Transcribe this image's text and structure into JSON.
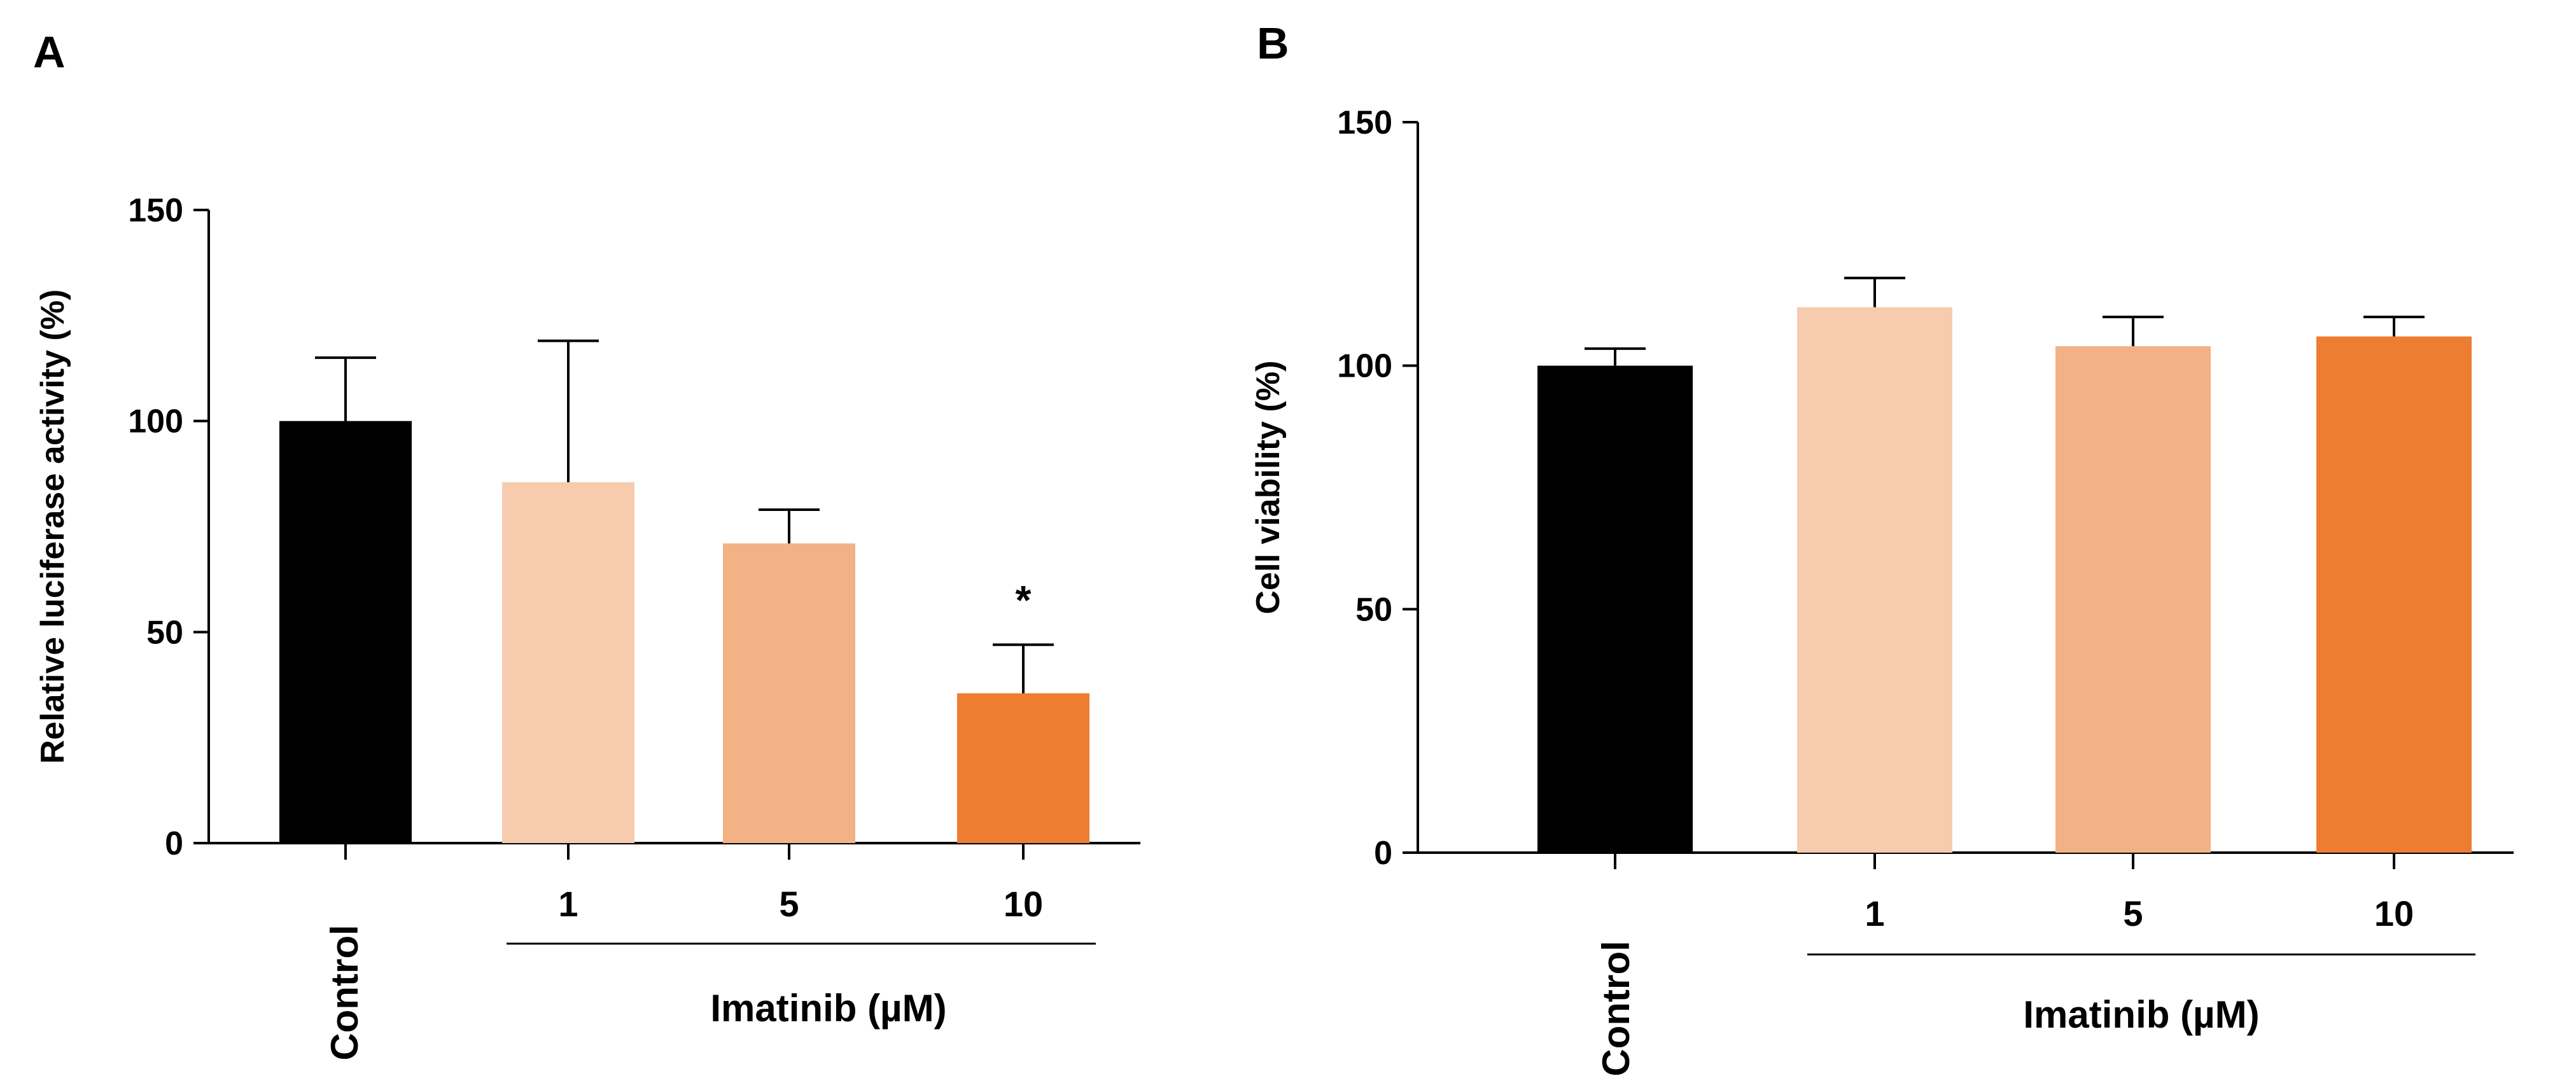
{
  "chart_data": [
    {
      "panel_label": "A",
      "type": "bar",
      "ylabel": "Relative luciferase activity (%)",
      "ylim": [
        0,
        150
      ],
      "yticks": [
        0,
        50,
        100,
        150
      ],
      "categories": [
        "Control",
        "1",
        "5",
        "10"
      ],
      "values": [
        100,
        85.5,
        71,
        35.5
      ],
      "errors": [
        15,
        33.5,
        8,
        11.5
      ],
      "colors": [
        "#000000",
        "#F7CBAD",
        "#F3B186",
        "#ED7D31"
      ],
      "annotations": [
        "",
        "",
        "",
        "*"
      ],
      "group_label": "Imatinib (µM)",
      "group_categories": [
        1,
        3
      ]
    },
    {
      "panel_label": "B",
      "type": "bar",
      "ylabel": "Cell viability (%)",
      "ylim": [
        0,
        150
      ],
      "yticks": [
        0,
        50,
        100,
        150
      ],
      "categories": [
        "Control",
        "1",
        "5",
        "10"
      ],
      "values": [
        100,
        112,
        104,
        106
      ],
      "errors": [
        3.5,
        6,
        6,
        4
      ],
      "colors": [
        "#000000",
        "#F7CBAD",
        "#F3B186",
        "#ED7D31"
      ],
      "annotations": [
        "",
        "",
        "",
        ""
      ],
      "group_label": "Imatinib (µM)",
      "group_categories": [
        1,
        3
      ]
    }
  ]
}
